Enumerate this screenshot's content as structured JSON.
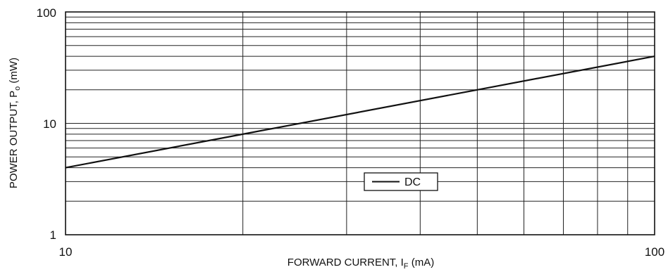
{
  "chart_data": {
    "type": "line",
    "x_scale": "log",
    "y_scale": "log",
    "xlim": [
      10,
      100
    ],
    "ylim": [
      1,
      100
    ],
    "x_ticks": [
      "10",
      "100"
    ],
    "y_ticks": [
      "1",
      "10",
      "100"
    ],
    "xlabel": {
      "prefix": "FORWARD CURRENT, I",
      "sub": "F",
      "suffix": " (mA)"
    },
    "ylabel": {
      "prefix": "POWER OUTPUT, P",
      "sub": "o",
      "suffix": " (mW)"
    },
    "grid": true,
    "legend_position": "center",
    "series": [
      {
        "name": "DC",
        "x": [
          10,
          20,
          50,
          100
        ],
        "y": [
          4,
          8,
          20,
          40
        ]
      }
    ],
    "colors": {
      "line": "#111111",
      "grid": "#222222",
      "background": "#ffffff"
    }
  }
}
